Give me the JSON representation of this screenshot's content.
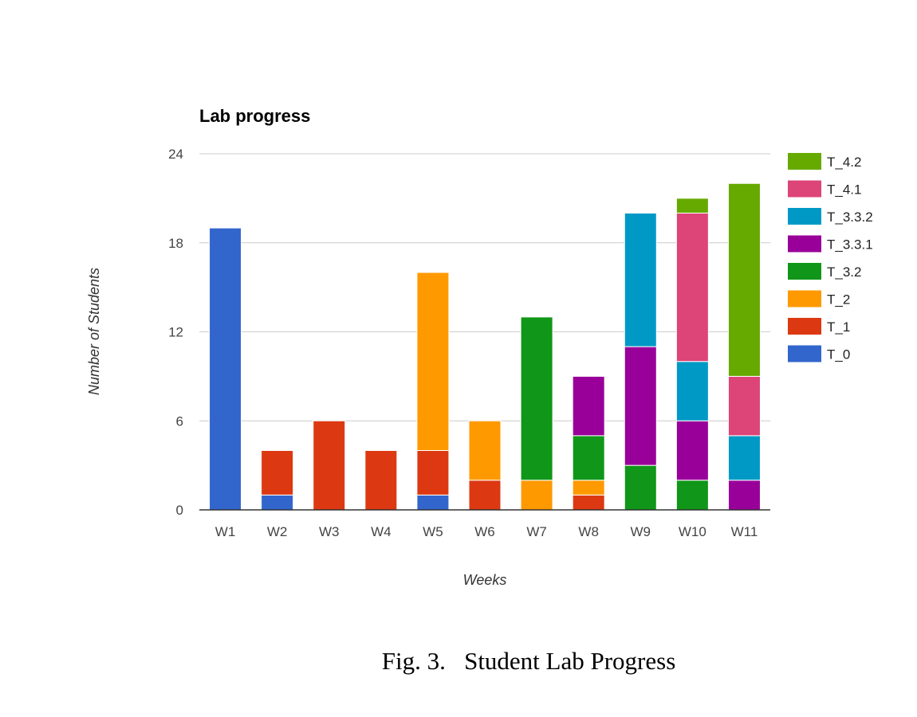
{
  "chart_data": {
    "type": "bar",
    "stacked": true,
    "title": "Lab progress",
    "xlabel": "Weeks",
    "ylabel": "Number of Students",
    "ylim": [
      0,
      24
    ],
    "yticks": [
      0,
      6,
      12,
      18,
      24
    ],
    "grid": true,
    "legend_position": "right",
    "categories": [
      "W1",
      "W2",
      "W3",
      "W4",
      "W5",
      "W6",
      "W7",
      "W8",
      "W9",
      "W10",
      "W11"
    ],
    "series": [
      {
        "name": "T_0",
        "color": "#3366cc",
        "values": [
          19,
          1,
          0,
          0,
          1,
          0,
          0,
          0,
          0,
          0,
          0
        ]
      },
      {
        "name": "T_1",
        "color": "#dc3912",
        "values": [
          0,
          3,
          6,
          4,
          3,
          2,
          0,
          1,
          0,
          0,
          0
        ]
      },
      {
        "name": "T_2",
        "color": "#ff9900",
        "values": [
          0,
          0,
          0,
          0,
          12,
          4,
          2,
          1,
          0,
          0,
          0
        ]
      },
      {
        "name": "T_3.2",
        "color": "#109618",
        "values": [
          0,
          0,
          0,
          0,
          0,
          0,
          11,
          3,
          3,
          2,
          0
        ]
      },
      {
        "name": "T_3.3.1",
        "color": "#990099",
        "values": [
          0,
          0,
          0,
          0,
          0,
          0,
          0,
          4,
          8,
          4,
          2
        ]
      },
      {
        "name": "T_3.3.2",
        "color": "#0099c6",
        "values": [
          0,
          0,
          0,
          0,
          0,
          0,
          0,
          0,
          9,
          4,
          3
        ]
      },
      {
        "name": "T_4.1",
        "color": "#dd4477",
        "values": [
          0,
          0,
          0,
          0,
          0,
          0,
          0,
          0,
          0,
          10,
          4
        ]
      },
      {
        "name": "T_4.2",
        "color": "#66aa00",
        "values": [
          0,
          0,
          0,
          0,
          0,
          0,
          0,
          0,
          0,
          1,
          13
        ]
      }
    ]
  },
  "caption": "Fig. 3.   Student Lab Progress"
}
